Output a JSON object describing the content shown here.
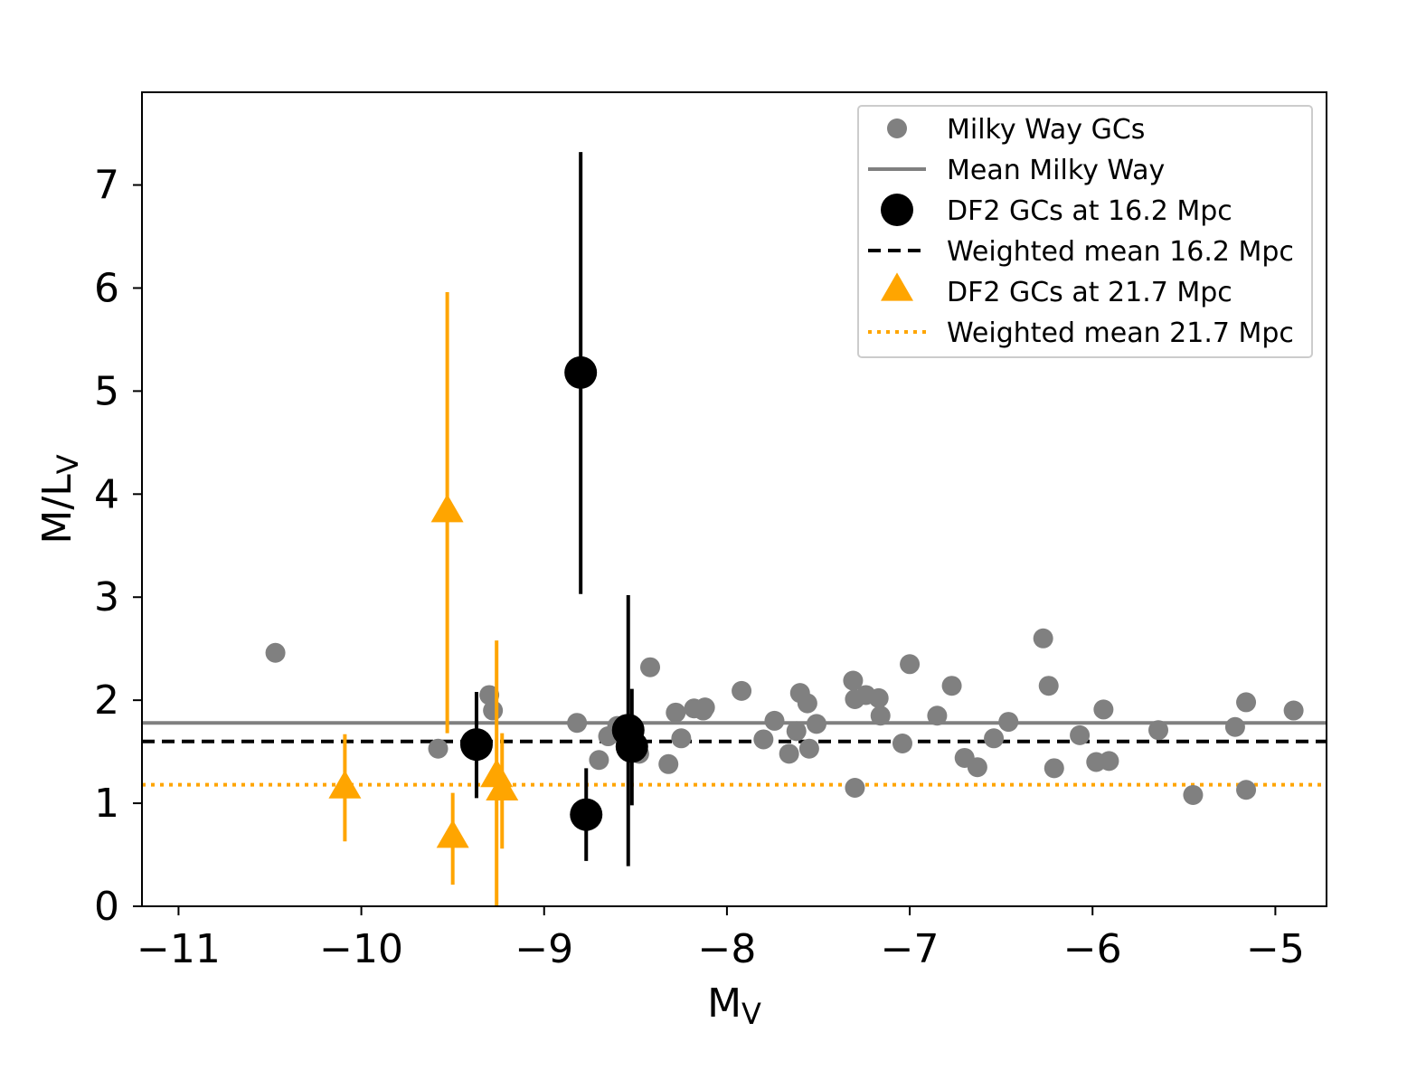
{
  "chart_data": {
    "type": "scatter",
    "title": "",
    "xlabel": "M",
    "xlabel_sub": "V",
    "ylabel": "M/L",
    "ylabel_sub": "V",
    "xlim": [
      -11.2,
      -4.72
    ],
    "ylim": [
      0,
      7.9
    ],
    "xticks": [
      -11,
      -10,
      -9,
      -8,
      -7,
      -6,
      -5
    ],
    "xtick_labels": [
      "−11",
      "−10",
      "−9",
      "−8",
      "−7",
      "−6",
      "−5"
    ],
    "yticks": [
      0,
      1,
      2,
      3,
      4,
      5,
      6,
      7
    ],
    "ytick_labels": [
      "0",
      "1",
      "2",
      "3",
      "4",
      "5",
      "6",
      "7"
    ],
    "grid": false,
    "legend_position": "top-right",
    "colors": {
      "milky_way": "#808080",
      "df2_162": "#000000",
      "df2_217": "#ffa500"
    },
    "series": [
      {
        "name": "Milky Way GCs",
        "marker": "circle",
        "color": "#808080",
        "points": [
          {
            "x": -10.47,
            "y": 2.46
          },
          {
            "x": -9.58,
            "y": 1.53
          },
          {
            "x": -9.3,
            "y": 2.05
          },
          {
            "x": -9.28,
            "y": 1.9
          },
          {
            "x": -8.82,
            "y": 1.78
          },
          {
            "x": -8.7,
            "y": 1.42
          },
          {
            "x": -8.65,
            "y": 1.65
          },
          {
            "x": -8.6,
            "y": 1.75
          },
          {
            "x": -8.52,
            "y": 1.6
          },
          {
            "x": -8.48,
            "y": 1.48
          },
          {
            "x": -8.42,
            "y": 2.32
          },
          {
            "x": -8.32,
            "y": 1.38
          },
          {
            "x": -8.28,
            "y": 1.88
          },
          {
            "x": -8.25,
            "y": 1.63
          },
          {
            "x": -8.18,
            "y": 1.92
          },
          {
            "x": -8.13,
            "y": 1.9
          },
          {
            "x": -8.12,
            "y": 1.93
          },
          {
            "x": -7.92,
            "y": 2.09
          },
          {
            "x": -7.8,
            "y": 1.62
          },
          {
            "x": -7.74,
            "y": 1.8
          },
          {
            "x": -7.66,
            "y": 1.48
          },
          {
            "x": -7.62,
            "y": 1.7
          },
          {
            "x": -7.6,
            "y": 2.07
          },
          {
            "x": -7.56,
            "y": 1.97
          },
          {
            "x": -7.55,
            "y": 1.53
          },
          {
            "x": -7.51,
            "y": 1.77
          },
          {
            "x": -7.31,
            "y": 2.19
          },
          {
            "x": -7.3,
            "y": 2.01
          },
          {
            "x": -7.3,
            "y": 1.15
          },
          {
            "x": -7.24,
            "y": 2.05
          },
          {
            "x": -7.17,
            "y": 2.02
          },
          {
            "x": -7.16,
            "y": 1.85
          },
          {
            "x": -7.04,
            "y": 1.58
          },
          {
            "x": -7.0,
            "y": 2.35
          },
          {
            "x": -6.85,
            "y": 1.85
          },
          {
            "x": -6.77,
            "y": 2.14
          },
          {
            "x": -6.7,
            "y": 1.44
          },
          {
            "x": -6.63,
            "y": 1.35
          },
          {
            "x": -6.54,
            "y": 1.63
          },
          {
            "x": -6.46,
            "y": 1.79
          },
          {
            "x": -6.27,
            "y": 2.6
          },
          {
            "x": -6.24,
            "y": 2.14
          },
          {
            "x": -6.21,
            "y": 1.34
          },
          {
            "x": -6.07,
            "y": 1.66
          },
          {
            "x": -5.98,
            "y": 1.4
          },
          {
            "x": -5.94,
            "y": 1.91
          },
          {
            "x": -5.91,
            "y": 1.41
          },
          {
            "x": -5.64,
            "y": 1.71
          },
          {
            "x": -5.45,
            "y": 1.08
          },
          {
            "x": -5.22,
            "y": 1.74
          },
          {
            "x": -5.16,
            "y": 1.98
          },
          {
            "x": -5.16,
            "y": 1.13
          },
          {
            "x": -4.9,
            "y": 1.9
          }
        ]
      },
      {
        "name": "DF2 GCs at 16.2 Mpc",
        "marker": "circle",
        "color": "#000000",
        "points": [
          {
            "x": -9.37,
            "y": 1.57,
            "ylo": 1.05,
            "yhi": 2.08
          },
          {
            "x": -8.8,
            "y": 5.18,
            "ylo": 3.03,
            "yhi": 7.32
          },
          {
            "x": -8.77,
            "y": 0.89,
            "ylo": 0.44,
            "yhi": 1.34
          },
          {
            "x": -8.54,
            "y": 1.71,
            "ylo": 0.39,
            "yhi": 3.02
          },
          {
            "x": -8.52,
            "y": 1.55,
            "ylo": 0.98,
            "yhi": 2.11
          }
        ]
      },
      {
        "name": "DF2 GCs at 21.7 Mpc",
        "marker": "triangle",
        "color": "#ffa500",
        "points": [
          {
            "x": -10.09,
            "y": 1.14,
            "ylo": 0.63,
            "yhi": 1.67
          },
          {
            "x": -9.53,
            "y": 3.82,
            "ylo": 1.68,
            "yhi": 5.96
          },
          {
            "x": -9.5,
            "y": 0.66,
            "ylo": 0.21,
            "yhi": 1.1
          },
          {
            "x": -9.26,
            "y": 1.25,
            "ylo": 0.0,
            "yhi": 2.58
          },
          {
            "x": -9.23,
            "y": 1.12,
            "ylo": 0.56,
            "yhi": 1.68
          }
        ]
      }
    ],
    "reference_lines": [
      {
        "name": "Mean Milky Way",
        "y": 1.78,
        "style": "solid",
        "color": "#808080"
      },
      {
        "name": "Weighted mean 16.2 Mpc",
        "y": 1.6,
        "style": "dashed",
        "color": "#000000"
      },
      {
        "name": "Weighted mean 21.7 Mpc",
        "y": 1.18,
        "style": "dotted",
        "color": "#ffa500"
      }
    ],
    "legend": [
      {
        "label": "Milky Way GCs",
        "kind": "circle",
        "color": "#808080"
      },
      {
        "label": "Mean Milky Way",
        "kind": "solid",
        "color": "#808080"
      },
      {
        "label": "DF2 GCs at 16.2 Mpc",
        "kind": "bigcircle",
        "color": "#000000"
      },
      {
        "label": "Weighted mean 16.2 Mpc",
        "kind": "dashed",
        "color": "#000000"
      },
      {
        "label": "DF2 GCs at 21.7 Mpc",
        "kind": "triangle",
        "color": "#ffa500"
      },
      {
        "label": "Weighted mean 21.7 Mpc",
        "kind": "dotted",
        "color": "#ffa500"
      }
    ]
  }
}
